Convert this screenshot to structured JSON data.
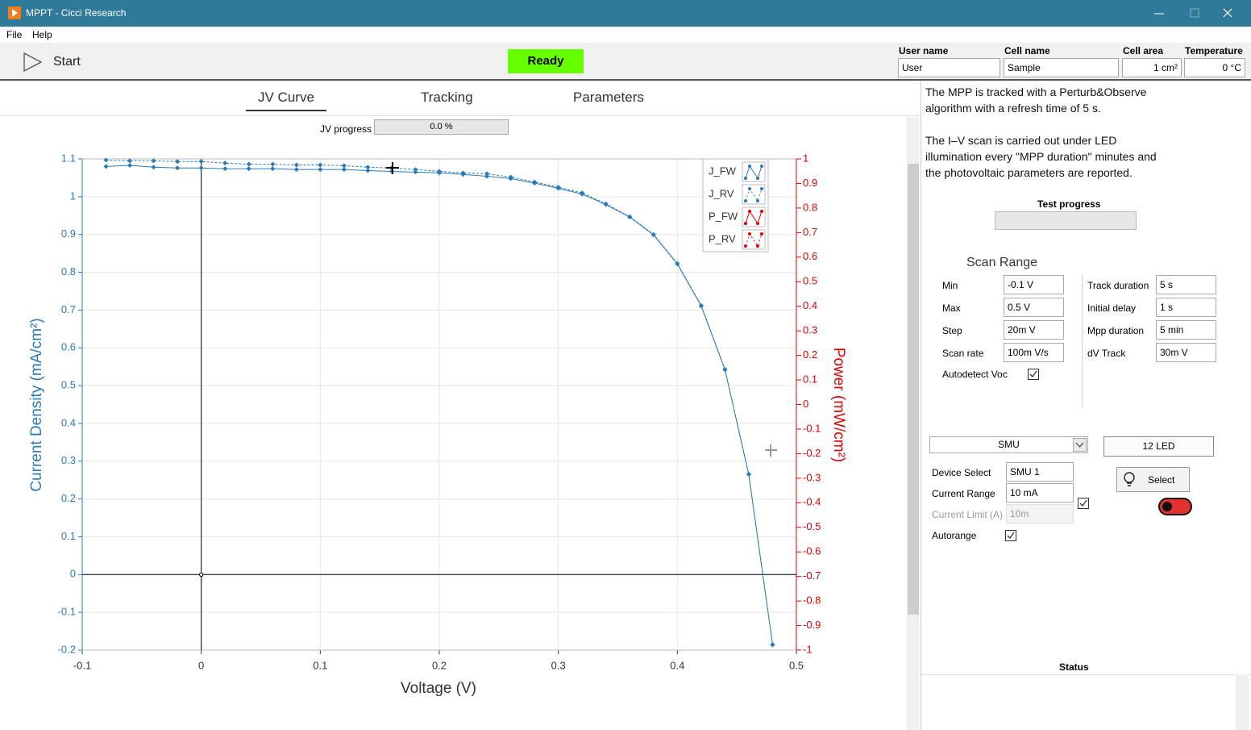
{
  "window": {
    "title": "MPPT - Cicci Research"
  },
  "menu": [
    "File",
    "Help"
  ],
  "toolbar": {
    "start": "Start",
    "status": "Ready",
    "fields": [
      {
        "label": "User name",
        "value": "User"
      },
      {
        "label": "Cell name",
        "value": "Sample"
      },
      {
        "label": "Cell area",
        "value": "1 cm²"
      },
      {
        "label": "Temperature",
        "value": "0 °C"
      }
    ]
  },
  "tabs": [
    "JV Curve",
    "Tracking",
    "Parameters"
  ],
  "jv_progress": {
    "label": "JV progress",
    "value": "0.0 %"
  },
  "chart_data": {
    "type": "line",
    "x_label": "Voltage (V)",
    "y_label": "Current Density (mA/cm²)",
    "y2_label": "Power (mW/cm²)",
    "xlim": [
      -0.1,
      0.5
    ],
    "xticks": [
      -0.1,
      0,
      0.1,
      0.2,
      0.3,
      0.4,
      0.5
    ],
    "ylim": [
      -0.2,
      1.1
    ],
    "yticks": [
      -0.2,
      -0.1,
      0,
      0.1,
      0.2,
      0.3,
      0.4,
      0.5,
      0.6,
      0.7,
      0.8,
      0.9,
      1,
      1.1
    ],
    "y2lim": [
      -1,
      1
    ],
    "y2ticks": [
      -1,
      -0.9,
      -0.8,
      -0.7,
      -0.6,
      -0.5,
      -0.4,
      -0.3,
      -0.2,
      -0.1,
      0,
      0.1,
      0.2,
      0.3,
      0.4,
      0.5,
      0.6,
      0.7,
      0.8,
      0.9,
      1
    ],
    "grid": true,
    "legend": "upper right",
    "series": [
      {
        "name": "J_FW",
        "color": "#2a7ab8",
        "line_style": "solid",
        "x": [
          -0.08,
          -0.06,
          -0.04,
          -0.02,
          0,
          0.02,
          0.04,
          0.06,
          0.08,
          0.1,
          0.12,
          0.14,
          0.16,
          0.18,
          0.2,
          0.22,
          0.24,
          0.26,
          0.28,
          0.3,
          0.32,
          0.34,
          0.36,
          0.38,
          0.4,
          0.42,
          0.44,
          0.46,
          0.48
        ],
        "values": [
          1.08,
          1.083,
          1.078,
          1.076,
          1.076,
          1.074,
          1.074,
          1.074,
          1.072,
          1.072,
          1.072,
          1.069,
          1.067,
          1.065,
          1.063,
          1.059,
          1.054,
          1.048,
          1.036,
          1.022,
          1.007,
          0.979,
          0.946,
          0.899,
          0.822,
          0.711,
          0.542,
          0.265,
          -0.186
        ]
      },
      {
        "name": "J_RV",
        "color": "#2a7ab8",
        "line_style": "dashed",
        "x": [
          -0.08,
          -0.06,
          -0.04,
          -0.02,
          0,
          0.02,
          0.04,
          0.06,
          0.08,
          0.1,
          0.12,
          0.14,
          0.16,
          0.18,
          0.2,
          0.22,
          0.24,
          0.26,
          0.28,
          0.3,
          0.32,
          0.34,
          0.36,
          0.38,
          0.4,
          0.42,
          0.44,
          0.46,
          0.48
        ],
        "values": [
          1.097,
          1.095,
          1.095,
          1.093,
          1.093,
          1.089,
          1.086,
          1.086,
          1.084,
          1.084,
          1.082,
          1.078,
          1.076,
          1.072,
          1.067,
          1.063,
          1.061,
          1.052,
          1.039,
          1.025,
          1.01,
          0.981,
          0.947,
          0.9,
          0.823,
          0.712,
          0.543,
          0.266,
          -0.185
        ]
      },
      {
        "name": "P_FW",
        "color": "#e00000",
        "line_style": "solid",
        "axis": "y2",
        "x": [],
        "values": []
      },
      {
        "name": "P_RV",
        "color": "#e00000",
        "line_style": "dashed",
        "axis": "y2",
        "x": [],
        "values": []
      }
    ]
  },
  "description": [
    "The MPP is tracked with a Perturb&Observe algorithm with a refresh time of 5 s.",
    "The I–V scan is carried out under LED illumination every \"MPP duration\" minutes and the photovoltaic parameters are reported."
  ],
  "test_progress": {
    "label": "Test progress"
  },
  "scan_range": {
    "title": "Scan Range",
    "fields": [
      {
        "label": "Min",
        "value": "-0.1 V"
      },
      {
        "label": "Max",
        "value": "0.5 V"
      },
      {
        "label": "Step",
        "value": "20m V"
      },
      {
        "label": "Scan rate",
        "value": "100m V/s"
      }
    ],
    "autodetect": "Autodetect Voc",
    "tracking": [
      {
        "label": "Track duration",
        "value": "5 s"
      },
      {
        "label": "Initial delay",
        "value": "1 s"
      },
      {
        "label": "Mpp duration",
        "value": "5 min"
      },
      {
        "label": "dV Track",
        "value": "30m V"
      }
    ]
  },
  "smu": {
    "selector": "SMU",
    "led": "12 LED",
    "fields": [
      {
        "label": "Device Select",
        "value": "SMU 1"
      },
      {
        "label": "Current Range",
        "value": "10 mA"
      },
      {
        "label": "Current Limit (A)",
        "value": "10m"
      }
    ],
    "autorange": "Autorange",
    "select": "Select"
  },
  "status": {
    "label": "Status"
  }
}
